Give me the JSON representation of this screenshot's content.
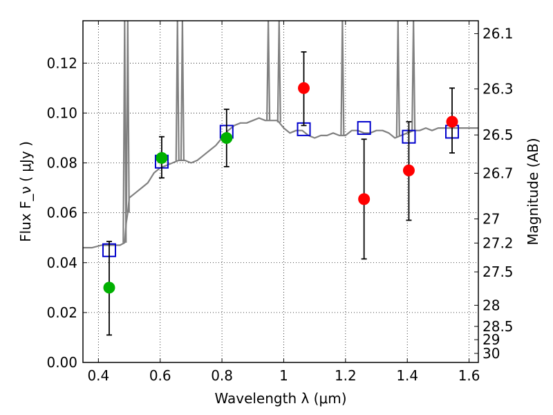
{
  "chart_data": {
    "type": "scatter",
    "title": "",
    "xlabel": "Wavelength  λ (μm)",
    "ylabel": "Flux  F_ν  ( μJy )",
    "ylabel_right": "Magnitude (AB)",
    "xlim": [
      0.35,
      1.63
    ],
    "ylim": [
      0.0,
      0.137
    ],
    "grid": true,
    "x_ticks": [
      0.4,
      0.6,
      0.8,
      1.0,
      1.2,
      1.4,
      1.6
    ],
    "x_tick_labels": [
      "0.4",
      "0.6",
      "0.8",
      "1",
      "1.2",
      "1.4",
      "1.6"
    ],
    "y_ticks": [
      0.0,
      0.02,
      0.04,
      0.06,
      0.08,
      0.1,
      0.12
    ],
    "y_tick_labels": [
      "0.00",
      "0.02",
      "0.04",
      "0.06",
      "0.08",
      "0.10",
      "0.12"
    ],
    "right_ticks": [
      26.1,
      26.3,
      26.5,
      26.7,
      27.0,
      27.2,
      27.5,
      28.0,
      28.5,
      29.0,
      30.0
    ],
    "right_tick_labels": [
      "26.1",
      "26.3",
      "26.5",
      "26.7",
      "27",
      "27.2",
      "27.5",
      "28",
      "28.5",
      "29",
      "30"
    ],
    "template_spectrum": {
      "color": "#808080",
      "x": [
        0.35,
        0.38,
        0.41,
        0.44,
        0.47,
        0.485,
        0.49,
        0.495,
        0.5,
        0.52,
        0.54,
        0.56,
        0.58,
        0.6,
        0.62,
        0.64,
        0.66,
        0.68,
        0.7,
        0.72,
        0.74,
        0.76,
        0.78,
        0.8,
        0.82,
        0.84,
        0.86,
        0.88,
        0.9,
        0.92,
        0.94,
        0.96,
        0.98,
        1.0,
        1.02,
        1.04,
        1.06,
        1.08,
        1.1,
        1.12,
        1.14,
        1.16,
        1.18,
        1.2,
        1.22,
        1.24,
        1.26,
        1.28,
        1.3,
        1.32,
        1.34,
        1.36,
        1.38,
        1.4,
        1.42,
        1.44,
        1.46,
        1.48,
        1.5,
        1.52,
        1.54,
        1.56,
        1.58,
        1.6,
        1.63
      ],
      "y": [
        0.046,
        0.046,
        0.047,
        0.047,
        0.047,
        0.048,
        0.056,
        0.06,
        0.066,
        0.068,
        0.07,
        0.072,
        0.076,
        0.078,
        0.079,
        0.08,
        0.081,
        0.081,
        0.08,
        0.081,
        0.083,
        0.085,
        0.087,
        0.09,
        0.093,
        0.095,
        0.096,
        0.096,
        0.097,
        0.098,
        0.097,
        0.097,
        0.097,
        0.094,
        0.092,
        0.093,
        0.093,
        0.091,
        0.09,
        0.091,
        0.091,
        0.092,
        0.091,
        0.091,
        0.093,
        0.093,
        0.092,
        0.092,
        0.093,
        0.093,
        0.092,
        0.09,
        0.091,
        0.092,
        0.093,
        0.093,
        0.094,
        0.093,
        0.094,
        0.094,
        0.094,
        0.094,
        0.094,
        0.094,
        0.094
      ]
    },
    "emission_spikes": [
      {
        "x": 0.485,
        "y": 0.137
      },
      {
        "x": 0.495,
        "y": 0.137
      },
      {
        "x": 0.656,
        "y": 0.137
      },
      {
        "x": 0.672,
        "y": 0.137
      },
      {
        "x": 0.95,
        "y": 0.137
      },
      {
        "x": 0.985,
        "y": 0.137
      },
      {
        "x": 1.19,
        "y": 0.137
      },
      {
        "x": 1.37,
        "y": 0.137
      },
      {
        "x": 1.42,
        "y": 0.137
      }
    ],
    "series": [
      {
        "name": "",
        "marker": "square",
        "color": "#0000cc",
        "points": [
          {
            "x": 0.435,
            "y": 0.045
          },
          {
            "x": 0.605,
            "y": 0.0805
          },
          {
            "x": 0.815,
            "y": 0.0925
          },
          {
            "x": 1.065,
            "y": 0.0935
          },
          {
            "x": 1.26,
            "y": 0.094
          },
          {
            "x": 1.405,
            "y": 0.0905
          },
          {
            "x": 1.545,
            "y": 0.0925
          }
        ]
      },
      {
        "name": "",
        "marker": "circle",
        "color": "#00b000",
        "points": [
          {
            "x": 0.435,
            "y": 0.03,
            "yerr_lo": 0.011,
            "yerr_hi": 0.0485
          },
          {
            "x": 0.605,
            "y": 0.082,
            "yerr_lo": 0.074,
            "yerr_hi": 0.0905
          },
          {
            "x": 0.815,
            "y": 0.09,
            "yerr_lo": 0.0785,
            "yerr_hi": 0.1015
          }
        ]
      },
      {
        "name": "",
        "marker": "circle",
        "color": "#ff0000",
        "points": [
          {
            "x": 1.065,
            "y": 0.11,
            "yerr_lo": 0.095,
            "yerr_hi": 0.1245
          },
          {
            "x": 1.26,
            "y": 0.0655,
            "yerr_lo": 0.0415,
            "yerr_hi": 0.0895
          },
          {
            "x": 1.405,
            "y": 0.077,
            "yerr_lo": 0.057,
            "yerr_hi": 0.0965
          },
          {
            "x": 1.545,
            "y": 0.0965,
            "yerr_lo": 0.084,
            "yerr_hi": 0.11
          }
        ]
      }
    ]
  }
}
